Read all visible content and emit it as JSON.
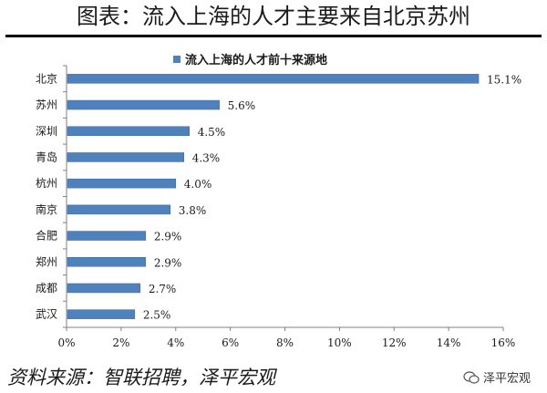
{
  "header": {
    "title": "图表：流入上海的人才主要来自北京苏州"
  },
  "footer": {
    "source": "资料来源：智联招聘，泽平宏观",
    "watermark": "泽平宏观",
    "watermark_icon": "wechat-icon"
  },
  "colors": {
    "bar": "#4F81BD",
    "axis": "#808080",
    "text": "#1a1a1a"
  },
  "chart_data": {
    "type": "bar",
    "orientation": "horizontal",
    "legend": {
      "label": "流入上海的人才前十来源地",
      "position": "top"
    },
    "categories": [
      "北京",
      "苏州",
      "深圳",
      "青岛",
      "杭州",
      "南京",
      "合肥",
      "郑州",
      "成都",
      "武汉"
    ],
    "series": [
      {
        "name": "流入上海的人才前十来源地",
        "values": [
          15.1,
          5.6,
          4.5,
          4.3,
          4.0,
          3.8,
          2.9,
          2.9,
          2.7,
          2.5
        ],
        "labels": [
          "15.1%",
          "5.6%",
          "4.5%",
          "4.3%",
          "4.0%",
          "3.8%",
          "2.9%",
          "2.9%",
          "2.7%",
          "2.5%"
        ]
      }
    ],
    "xlim": [
      0,
      16
    ],
    "xticks": [
      0,
      2,
      4,
      6,
      8,
      10,
      12,
      14,
      16
    ],
    "xtick_labels": [
      "0%",
      "2%",
      "4%",
      "6%",
      "8%",
      "10%",
      "12%",
      "14%",
      "16%"
    ],
    "xlabel": "",
    "ylabel": "",
    "grid": false
  }
}
